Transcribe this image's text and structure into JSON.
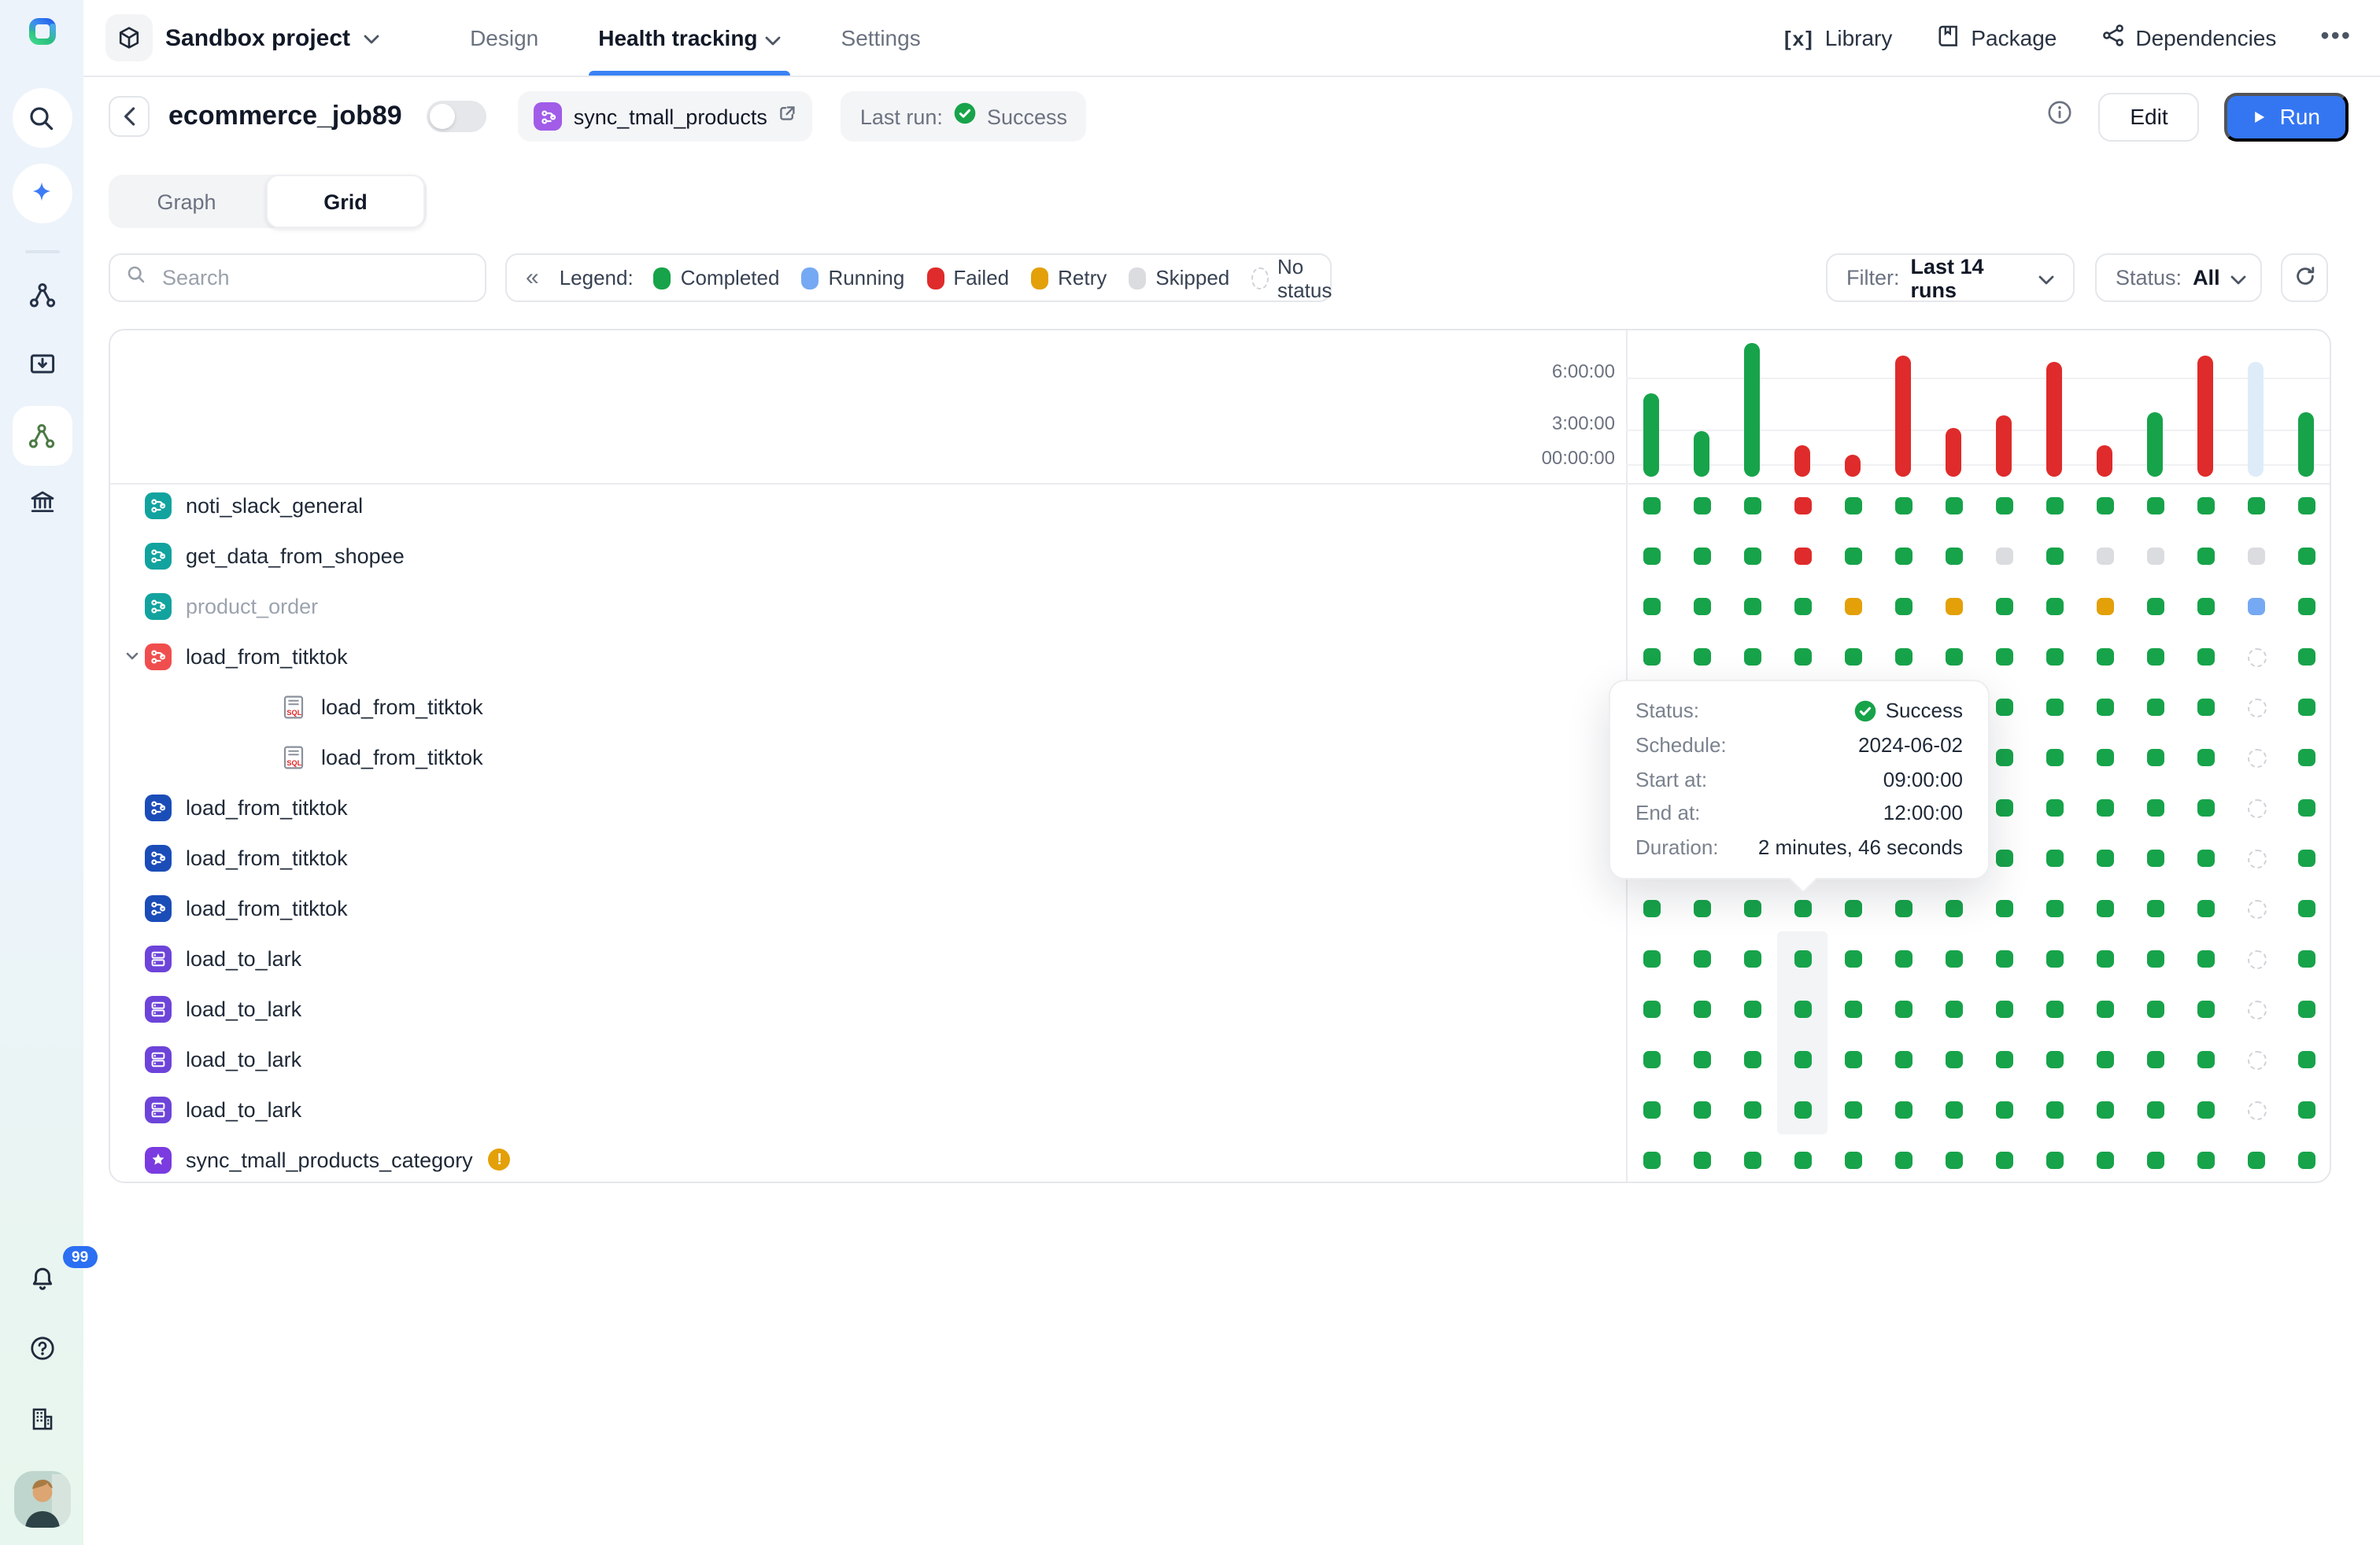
{
  "colors": {
    "completed": "#17A34A",
    "running": "#76A9F3",
    "failed": "#DF2B2B",
    "retry": "#E3A008",
    "skipped": "#DBDCE0",
    "no_status_border": "#CFD3D8",
    "running_bar_fill": "#DEEBF9",
    "accent_blue": "#3476F2",
    "tab_underline": "#3B82F6",
    "warning": "#E3A008",
    "notification_badge": "#2B6FF2"
  },
  "sidebar": {
    "notification_count": "99",
    "icons": [
      "logo",
      "search",
      "sparkle-ai",
      "divider",
      "workflow-nodes",
      "import-inbox",
      "pipelines-active",
      "bank",
      "notifications-bell",
      "help",
      "organization-building",
      "avatar"
    ]
  },
  "topbar": {
    "project_name": "Sandbox project",
    "tabs": [
      {
        "label": "Design",
        "active": false,
        "caret": false
      },
      {
        "label": "Health tracking",
        "active": true,
        "caret": true
      },
      {
        "label": "Settings",
        "active": false,
        "caret": false
      }
    ],
    "actions": [
      {
        "label": "Library",
        "icon": "library-icon"
      },
      {
        "label": "Package",
        "icon": "package-icon"
      },
      {
        "label": "Dependencies",
        "icon": "dependencies-icon"
      }
    ],
    "more_label": "•••"
  },
  "job_header": {
    "title": "ecommerce_job89",
    "toggle_on": false,
    "pipeline_chip": "sync_tmall_products",
    "last_run_label": "Last run:",
    "last_run_status": "Success",
    "edit_label": "Edit",
    "run_label": "Run"
  },
  "view_toggle": {
    "options": [
      "Graph",
      "Grid"
    ],
    "active": "Grid"
  },
  "filter_bar": {
    "search_placeholder": "Search",
    "collapse_icon": "«",
    "legend_label": "Legend:",
    "legend": [
      {
        "label": "Completed",
        "key": "completed"
      },
      {
        "label": "Running",
        "key": "running"
      },
      {
        "label": "Failed",
        "key": "failed"
      },
      {
        "label": "Retry",
        "key": "retry"
      },
      {
        "label": "Skipped",
        "key": "skipped"
      },
      {
        "label": "No status",
        "key": "none"
      }
    ],
    "filter_label": "Filter:",
    "filter_value": "Last 14 runs",
    "status_label": "Status:",
    "status_value": "All"
  },
  "chart_data": {
    "type": "bar",
    "title": "Run duration per scheduled run (last 14 runs)",
    "x": [
      1,
      2,
      3,
      4,
      5,
      6,
      7,
      8,
      9,
      10,
      11,
      12,
      13,
      14
    ],
    "durations_hours": [
      5.0,
      2.7,
      7.9,
      1.9,
      1.3,
      7.2,
      2.9,
      3.6,
      6.8,
      1.9,
      3.8,
      7.2,
      6.8,
      3.8
    ],
    "bar_status": [
      "completed",
      "completed",
      "completed",
      "failed",
      "failed",
      "failed",
      "failed",
      "failed",
      "failed",
      "failed",
      "completed",
      "failed",
      "running",
      "completed"
    ],
    "ylabel": "",
    "xlabel": "",
    "yticks": [
      "6:00:00",
      "3:00:00",
      "00:00:00"
    ],
    "ytick_hours": [
      6,
      3,
      0
    ],
    "ylim_hours": [
      0,
      8.7
    ],
    "grid": true,
    "legend_position": "top-left-toolbar"
  },
  "grid": {
    "dot_key": {
      "C": "Completed",
      "R": "Running",
      "F": "Failed",
      "Y": "Retry",
      "S": "Skipped",
      "N": "No status"
    },
    "hovered_column": 4,
    "rows": [
      {
        "name": "noti_slack_general",
        "icon": "flow-teal",
        "dots": [
          "C",
          "C",
          "C",
          "F",
          "C",
          "C",
          "C",
          "C",
          "C",
          "C",
          "C",
          "C",
          "C",
          "C"
        ]
      },
      {
        "name": "get_data_from_shopee",
        "icon": "flow-teal",
        "dots": [
          "C",
          "C",
          "C",
          "F",
          "C",
          "C",
          "C",
          "S",
          "C",
          "S",
          "S",
          "C",
          "S",
          "C"
        ]
      },
      {
        "name": "product_order",
        "icon": "flow-teal",
        "muted": true,
        "dots": [
          "C",
          "C",
          "C",
          "C",
          "Y",
          "C",
          "Y",
          "C",
          "C",
          "Y",
          "C",
          "C",
          "R",
          "C"
        ]
      },
      {
        "name": "load_from_titktok",
        "icon": "flow-red",
        "expanded": true,
        "dots": [
          "C",
          "C",
          "C",
          "C",
          "C",
          "C",
          "C",
          "C",
          "C",
          "C",
          "C",
          "C",
          "N",
          "C"
        ]
      },
      {
        "name": "load_from_titktok",
        "icon": "sql-file",
        "child": true,
        "dots": [
          "C",
          "C",
          "C",
          "C",
          "C",
          "C",
          "C",
          "C",
          "C",
          "C",
          "C",
          "C",
          "N",
          "C"
        ]
      },
      {
        "name": "load_from_titktok",
        "icon": "sql-file",
        "child": true,
        "dots": [
          "C",
          "C",
          "C",
          "C",
          "C",
          "C",
          "C",
          "C",
          "C",
          "C",
          "C",
          "C",
          "N",
          "C"
        ]
      },
      {
        "name": "load_from_titktok",
        "icon": "flow-blue",
        "dots": [
          "C",
          "C",
          "C",
          "C",
          "C",
          "C",
          "C",
          "C",
          "C",
          "C",
          "C",
          "C",
          "N",
          "C"
        ]
      },
      {
        "name": "load_from_titktok",
        "icon": "flow-blue",
        "dots": [
          "C",
          "C",
          "C",
          "C",
          "C",
          "C",
          "C",
          "C",
          "C",
          "C",
          "C",
          "C",
          "N",
          "C"
        ]
      },
      {
        "name": "load_from_titktok",
        "icon": "flow-blue",
        "dots": [
          "C",
          "C",
          "C",
          "C",
          "C",
          "C",
          "C",
          "C",
          "C",
          "C",
          "C",
          "C",
          "N",
          "C"
        ]
      },
      {
        "name": "load_to_lark",
        "icon": "db-purple",
        "dots": [
          "C",
          "C",
          "C",
          "C",
          "C",
          "C",
          "C",
          "C",
          "C",
          "C",
          "C",
          "C",
          "N",
          "C"
        ]
      },
      {
        "name": "load_to_lark",
        "icon": "db-purple",
        "dots": [
          "C",
          "C",
          "C",
          "C",
          "C",
          "C",
          "C",
          "C",
          "C",
          "C",
          "C",
          "C",
          "N",
          "C"
        ]
      },
      {
        "name": "load_to_lark",
        "icon": "db-purple",
        "dots": [
          "C",
          "C",
          "C",
          "C",
          "C",
          "C",
          "C",
          "C",
          "C",
          "C",
          "C",
          "C",
          "N",
          "C"
        ]
      },
      {
        "name": "load_to_lark",
        "icon": "db-purple",
        "dots": [
          "C",
          "C",
          "C",
          "C",
          "C",
          "C",
          "C",
          "C",
          "C",
          "C",
          "C",
          "C",
          "N",
          "C"
        ]
      },
      {
        "name": "sync_tmall_products_category",
        "icon": "star-purple",
        "warning": true,
        "dots": [
          "C",
          "C",
          "C",
          "C",
          "C",
          "C",
          "C",
          "C",
          "C",
          "C",
          "C",
          "C",
          "C",
          "C"
        ]
      }
    ]
  },
  "tooltip": {
    "rows": [
      {
        "label": "Status:",
        "value": "Success",
        "icon": "check-circle"
      },
      {
        "label": "Schedule:",
        "value": "2024-06-02"
      },
      {
        "label": "Start at:",
        "value": "09:00:00"
      },
      {
        "label": "End at:",
        "value": "12:00:00"
      },
      {
        "label": "Duration:",
        "value": "2 minutes, 46 seconds"
      }
    ]
  }
}
